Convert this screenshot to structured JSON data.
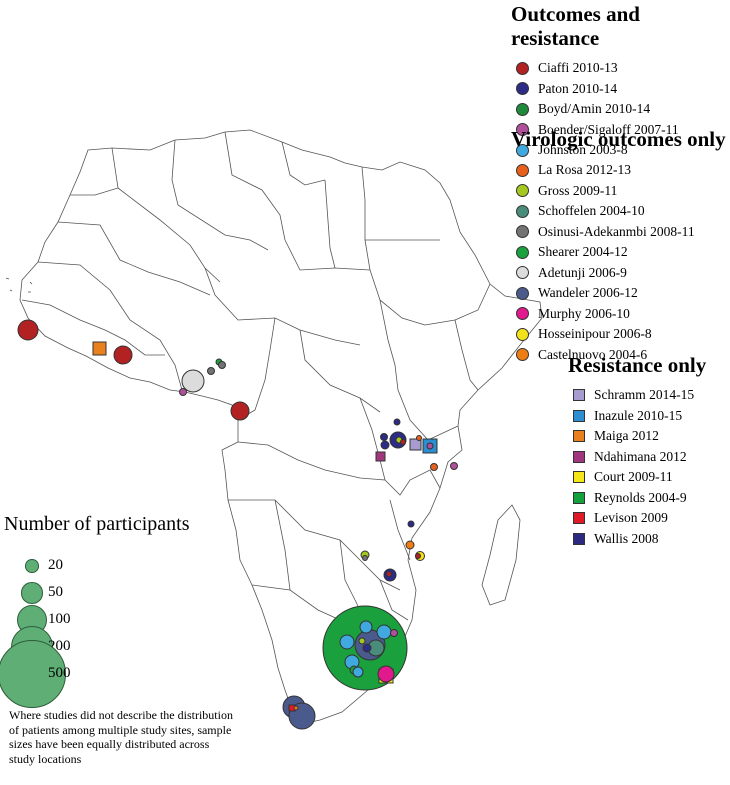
{
  "legend": {
    "outcomes": {
      "title": "Outcomes and resistance",
      "items": [
        {
          "label": "Ciaffi 2010-13",
          "color": "#b22222",
          "shape": "circle"
        },
        {
          "label": "Paton 2010-14",
          "color": "#2c2c86",
          "shape": "circle"
        },
        {
          "label": "Boyd/Amin 2010-14",
          "color": "#1f8a3b",
          "shape": "circle"
        },
        {
          "label": "Boender/Sigaloff 2007-11",
          "color": "#b04f9a",
          "shape": "circle"
        },
        {
          "label": "Johnston 2003-8",
          "color": "#3fa9e0",
          "shape": "circle"
        }
      ]
    },
    "virologic": {
      "title": "Virologic outcomes only",
      "items": [
        {
          "label": "La Rosa 2012-13",
          "color": "#e8601c",
          "shape": "circle"
        },
        {
          "label": "Gross 2009-11",
          "color": "#a5c820",
          "shape": "circle"
        },
        {
          "label": "Schoffelen 2004-10",
          "color": "#4a8c7a",
          "shape": "circle"
        },
        {
          "label": "Osinusi-Adekanmbi 2008-11",
          "color": "#737373",
          "shape": "circle"
        },
        {
          "label": "Shearer 2004-12",
          "color": "#1aa03c",
          "shape": "circle"
        },
        {
          "label": "Adetunji 2006-9",
          "color": "#dcdcdc",
          "shape": "circle"
        },
        {
          "label": "Wandeler 2006-12",
          "color": "#4a5a8c",
          "shape": "circle"
        },
        {
          "label": "Murphy 2006-10",
          "color": "#e0198c",
          "shape": "circle"
        },
        {
          "label": "Hosseinipour 2006-8",
          "color": "#f2e21a",
          "shape": "circle"
        },
        {
          "label": "Castelnuovo 2004-6",
          "color": "#ee7d14",
          "shape": "circle"
        }
      ]
    },
    "resistance": {
      "title": "Resistance only",
      "items": [
        {
          "label": "Schramm 2014-15",
          "color": "#a79bd0",
          "shape": "square"
        },
        {
          "label": "Inazule 2010-15",
          "color": "#2a8ed0",
          "shape": "square"
        },
        {
          "label": "Maiga 2012",
          "color": "#e8801e",
          "shape": "square"
        },
        {
          "label": "Ndahimana 2012",
          "color": "#a0377e",
          "shape": "square"
        },
        {
          "label": "Court 2009-11",
          "color": "#f5e61a",
          "shape": "square"
        },
        {
          "label": "Reynolds 2004-9",
          "color": "#14a03c",
          "shape": "square"
        },
        {
          "label": "Levison 2009",
          "color": "#e01a28",
          "shape": "square"
        },
        {
          "label": "Wallis 2008",
          "color": "#2c2a80",
          "shape": "square"
        }
      ]
    }
  },
  "size_legend": {
    "title": "Number of participants",
    "sizes": [
      20,
      50,
      100,
      200,
      500
    ],
    "fill": "#5fae75"
  },
  "footnote": "Where studies did not describe the distribution of patients among multiple study sites, sample sizes have been equally distributed across study locations",
  "map_markers": [
    {
      "study": "Ciaffi 2010-13",
      "participants": 180
    },
    {
      "study": "Ciaffi 2010-13",
      "participants": 180
    },
    {
      "study": "Ciaffi 2010-13",
      "participants": 180
    },
    {
      "study": "Maiga 2012",
      "participants": 70
    },
    {
      "study": "Adetunji 2006-9",
      "participants": 280
    },
    {
      "study": "Osinusi-Adekanmbi 2008-11",
      "participants": 30
    },
    {
      "study": "Paton 2010-14",
      "participants": 100
    },
    {
      "study": "Schramm 2014-15",
      "participants": 50
    },
    {
      "study": "Inazule 2010-15",
      "participants": 60
    },
    {
      "study": "Shearer 2004-12",
      "participants": 500
    },
    {
      "study": "Wandeler 2006-12",
      "participants": 350
    },
    {
      "study": "Wandeler 2006-12",
      "participants": 350
    },
    {
      "study": "Murphy 2006-10",
      "participants": 150
    },
    {
      "study": "Court 2009-11",
      "participants": 60
    },
    {
      "study": "Johnston 2003-8",
      "participants": 60
    }
  ]
}
